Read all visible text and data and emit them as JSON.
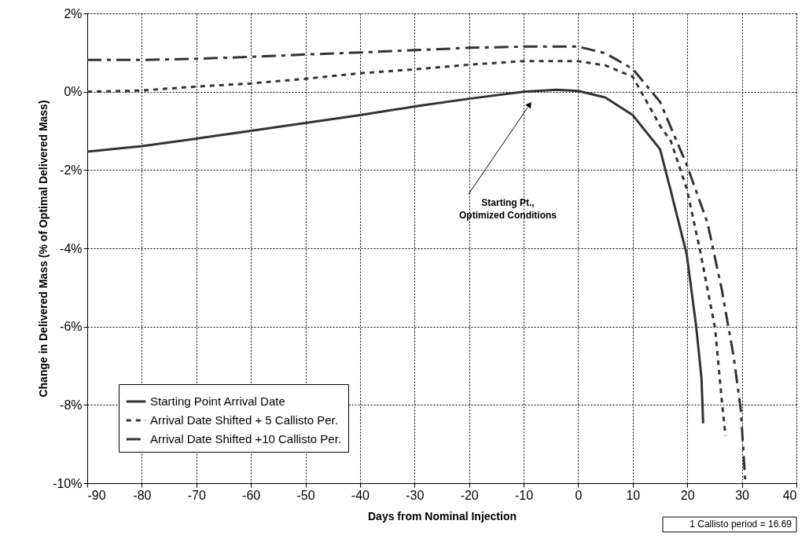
{
  "chart_data": {
    "type": "line",
    "xlabel": "Days from Nominal Injection",
    "ylabel": "Change in Delivered Mass (% of Optimal Delivered Mass)",
    "xlim": [
      -90,
      40
    ],
    "xticks": [
      -90,
      -80,
      -70,
      -60,
      -50,
      -40,
      -30,
      -20,
      -10,
      0,
      10,
      20,
      30,
      40
    ],
    "ylim": [
      -10,
      2
    ],
    "yticks": [
      {
        "value": 2,
        "label": "2%"
      },
      {
        "value": 0,
        "label": "0%"
      },
      {
        "value": -2,
        "label": "-2%"
      },
      {
        "value": -4,
        "label": "-4%"
      },
      {
        "value": -6,
        "label": "-6%"
      },
      {
        "value": -8,
        "label": "-8%"
      },
      {
        "value": -10,
        "label": "-10%"
      }
    ],
    "grid": true,
    "legend": "bottom left",
    "series": [
      {
        "name": "Starting Point Arrival Date",
        "color": "#333333",
        "line_style": "solid",
        "x": [
          -90,
          -80,
          -70,
          -60,
          -50,
          -40,
          -30,
          -20,
          -10,
          -4,
          0,
          5,
          10,
          15,
          17,
          19.9,
          21.6,
          22.6,
          22.9
        ],
        "values": [
          -1.53,
          -1.39,
          -1.2,
          -1.0,
          -0.8,
          -0.6,
          -0.38,
          -0.18,
          0.0,
          0.05,
          0.02,
          -0.15,
          -0.6,
          -1.47,
          -2.55,
          -4.16,
          -5.97,
          -7.32,
          -8.47
        ]
      },
      {
        "name": "Arrival Date Shifted + 5 Callisto Per.",
        "color": "#333333",
        "line_style": "dotted",
        "x": [
          -90,
          -80,
          -70,
          -60,
          -50,
          -40,
          -30,
          -20,
          -10,
          0,
          5,
          10,
          15,
          17,
          19.9,
          22.3,
          25.1,
          26.3,
          27.0
        ],
        "values": [
          0.0,
          0.03,
          0.13,
          0.21,
          0.33,
          0.47,
          0.57,
          0.69,
          0.78,
          0.78,
          0.67,
          0.38,
          -0.87,
          -1.27,
          -2.48,
          -4.03,
          -6.05,
          -7.86,
          -8.79
        ]
      },
      {
        "name": "Arrival Date Shifted +10 Callisto Per.",
        "color": "#333333",
        "line_style": "dashed",
        "x": [
          -90,
          -80,
          -70,
          -60,
          -50,
          -40,
          -30,
          -20,
          -10,
          0,
          5,
          10,
          15,
          19.9,
          23.7,
          26.3,
          28.5,
          29.8,
          30.6
        ],
        "values": [
          0.81,
          0.81,
          0.84,
          0.89,
          0.95,
          1.0,
          1.06,
          1.12,
          1.15,
          1.15,
          0.98,
          0.58,
          -0.26,
          -1.87,
          -3.35,
          -5.04,
          -6.77,
          -8.12,
          -9.9
        ]
      }
    ],
    "annotations": [
      "Starting Pt., Optimized Conditions",
      "1 Callisto period = 16.69"
    ]
  }
}
